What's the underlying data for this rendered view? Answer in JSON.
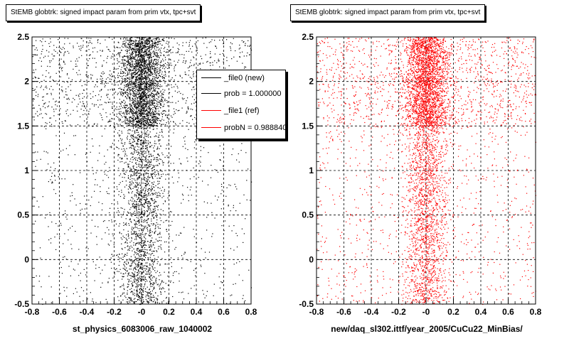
{
  "chart_data": [
    {
      "type": "scatter",
      "title": "StEMB globtrk: signed impact param from prim vtx, tpc+svt",
      "xlabel": "st_physics_6083006_raw_1040002",
      "ylabel": "",
      "xlim": [
        -0.8,
        0.8
      ],
      "ylim": [
        -0.5,
        2.5
      ],
      "xticks": [
        "-0.8",
        "-0.6",
        "-0.4",
        "-0.2",
        "-0",
        "0.2",
        "0.4",
        "0.6",
        "0.8"
      ],
      "yticks": [
        "-0.5",
        "0",
        "0.5",
        "1",
        "1.5",
        "2",
        "2.5"
      ],
      "grid": true,
      "marker_color": "#000000",
      "series": [
        {
          "name": "_file0 (new)",
          "distribution": [
            {
              "y_range": [
                -0.5,
                1.5
              ],
              "x_center": 0.0,
              "x_spread": 0.08,
              "background_fraction": 0.25
            },
            {
              "y_range": [
                1.5,
                2.5
              ],
              "x_center": 0.0,
              "x_spread": 0.08,
              "background_fraction": 0.3
            }
          ]
        }
      ],
      "legend": {
        "placement": "top-right",
        "entries": [
          {
            "label": "_file0 (new)",
            "color": "#000000"
          },
          {
            "label": "prob = 1.000000",
            "color": "#000000"
          },
          {
            "label": "_file1 (ref)",
            "color": "#ff0000"
          },
          {
            "label": "probN = 0.988840",
            "color": "#ff0000"
          }
        ]
      }
    },
    {
      "type": "scatter",
      "title": "StEMB globtrk: signed impact param from prim vtx, tpc+svt",
      "xlabel": "new/daq_sl302.ittf/year_2005/CuCu22_MinBias/",
      "ylabel": "",
      "xlim": [
        -0.8,
        0.8
      ],
      "ylim": [
        -0.5,
        2.5
      ],
      "xticks": [
        "-0.8",
        "-0.6",
        "-0.4",
        "-0.2",
        "-0",
        "0.2",
        "0.4",
        "0.6",
        "0.8"
      ],
      "yticks": [
        "-0.5",
        "0",
        "0.5",
        "1",
        "1.5",
        "2",
        "2.5"
      ],
      "grid": true,
      "marker_color": "#ff0000",
      "series": [
        {
          "name": "_file1 (ref)",
          "distribution": [
            {
              "y_range": [
                -0.5,
                1.5
              ],
              "x_center": 0.0,
              "x_spread": 0.08,
              "background_fraction": 0.3
            },
            {
              "y_range": [
                1.5,
                2.5
              ],
              "x_center": 0.0,
              "x_spread": 0.08,
              "background_fraction": 0.35
            }
          ]
        }
      ]
    }
  ]
}
